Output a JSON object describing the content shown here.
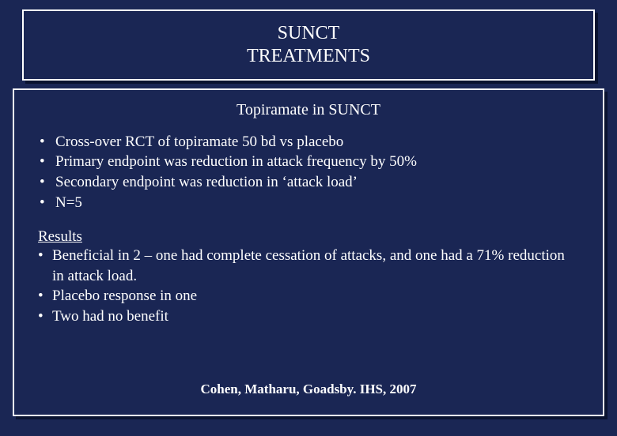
{
  "colors": {
    "background": "#1a2654",
    "border": "#ffffff",
    "shadow": "#0a1330",
    "text": "#ffffff"
  },
  "title": {
    "line1": "SUNCT",
    "line2": "TREATMENTS"
  },
  "content": {
    "subtitle": "Topiramate in SUNCT",
    "bullets": [
      "Cross-over  RCT of topiramate 50 bd vs placebo",
      "Primary endpoint was reduction in attack frequency by 50%",
      "Secondary endpoint was reduction in ‘attack load’",
      "N=5"
    ],
    "results_heading": "Results",
    "results": [
      "Beneficial in 2 – one had complete cessation of attacks, and one had a 71% reduction in attack load.",
      "Placebo response in one",
      "Two had no benefit"
    ],
    "citation": "Cohen, Matharu, Goadsby. IHS, 2007"
  }
}
